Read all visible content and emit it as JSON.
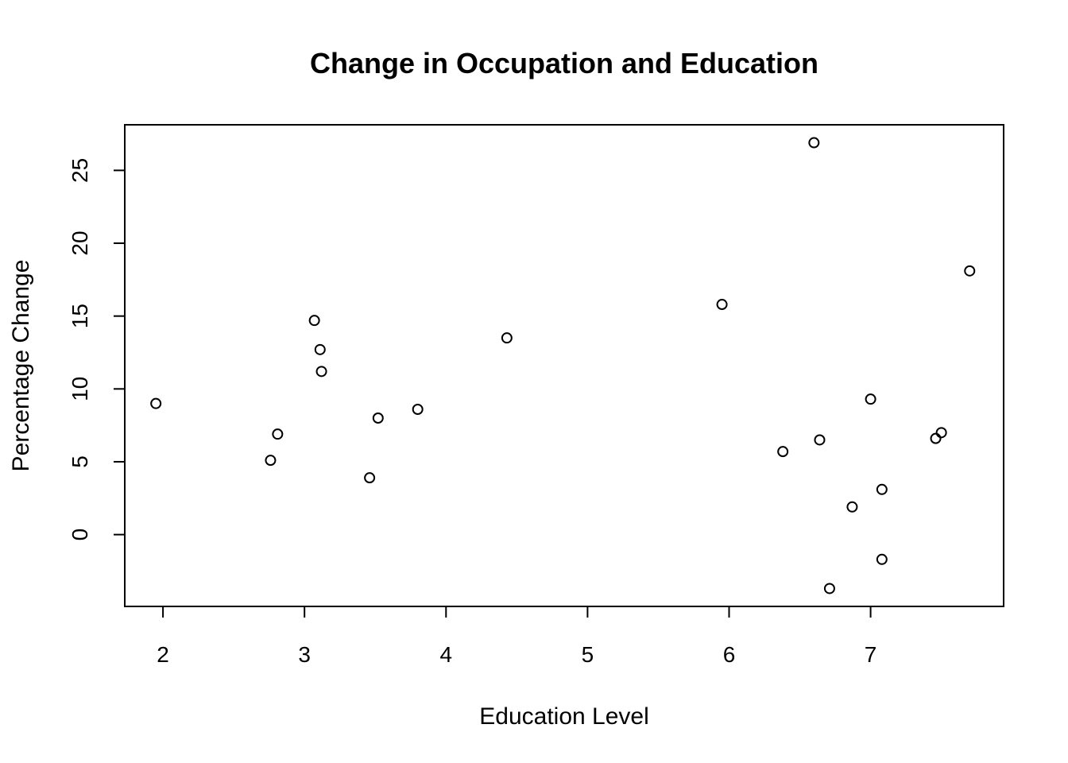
{
  "chart_data": {
    "type": "scatter",
    "title": "Change in Occupation and Education",
    "xlabel": "Education Level",
    "ylabel": "Percentage Change",
    "xlim": [
      1.73,
      7.94
    ],
    "ylim": [
      -4.93,
      28.13
    ],
    "x_ticks": [
      2,
      3,
      4,
      5,
      6,
      7
    ],
    "y_ticks": [
      0,
      5,
      10,
      15,
      20,
      25
    ],
    "grid": false,
    "legend": "none",
    "points": [
      {
        "x": 1.95,
        "y": 9.0
      },
      {
        "x": 2.76,
        "y": 5.1
      },
      {
        "x": 2.81,
        "y": 6.9
      },
      {
        "x": 3.07,
        "y": 14.7
      },
      {
        "x": 3.11,
        "y": 12.7
      },
      {
        "x": 3.12,
        "y": 11.2
      },
      {
        "x": 3.46,
        "y": 3.9
      },
      {
        "x": 3.52,
        "y": 8.0
      },
      {
        "x": 3.8,
        "y": 8.6
      },
      {
        "x": 4.43,
        "y": 13.5
      },
      {
        "x": 5.95,
        "y": 15.8
      },
      {
        "x": 6.38,
        "y": 5.7
      },
      {
        "x": 6.6,
        "y": 26.9
      },
      {
        "x": 6.64,
        "y": 6.5
      },
      {
        "x": 6.71,
        "y": -3.7
      },
      {
        "x": 6.87,
        "y": 1.9
      },
      {
        "x": 7.0,
        "y": 9.3
      },
      {
        "x": 7.08,
        "y": 3.1
      },
      {
        "x": 7.08,
        "y": -1.7
      },
      {
        "x": 7.46,
        "y": 6.6
      },
      {
        "x": 7.5,
        "y": 7.0
      },
      {
        "x": 7.7,
        "y": 18.1
      }
    ]
  }
}
